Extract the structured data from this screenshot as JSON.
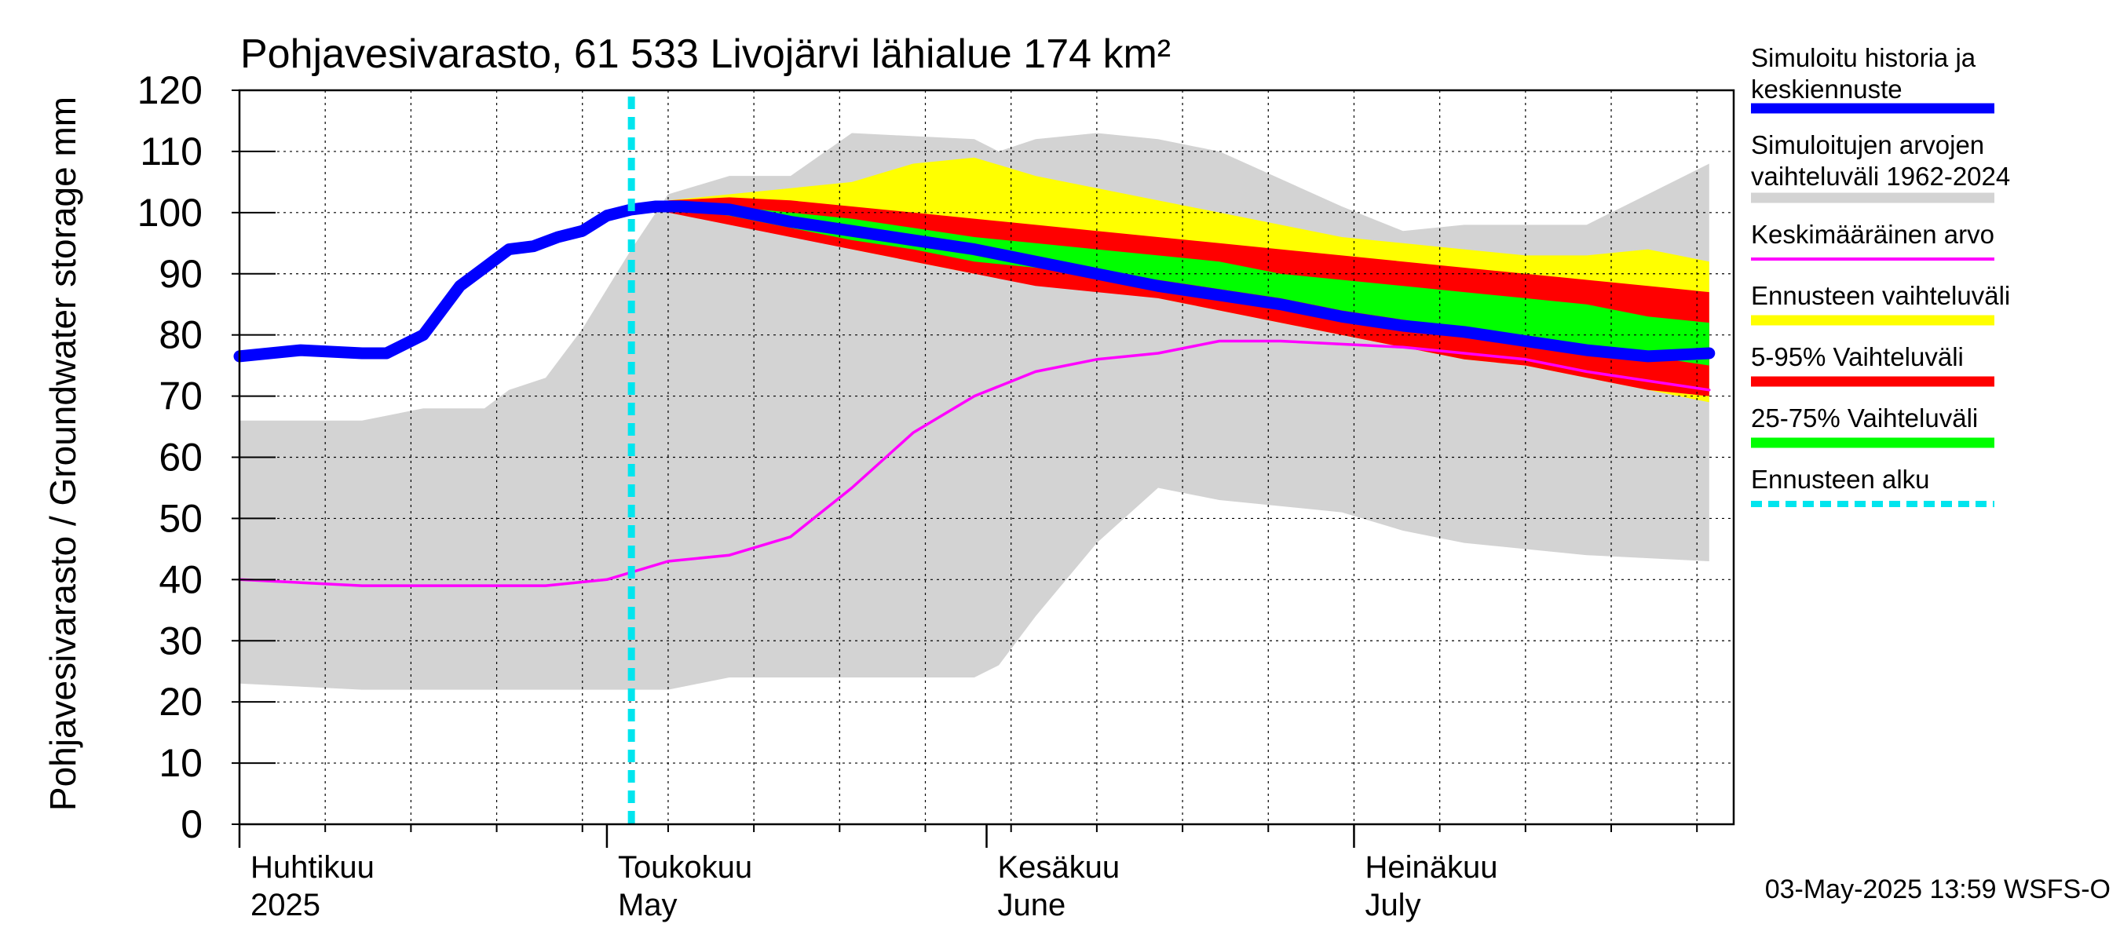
{
  "chart_data": {
    "type": "area",
    "title": "Pohjavesivarasto, 61 533 Livojärvi lähialue 174 km²",
    "ylabel": "Pohjavesivarasto / Groundwater storage   mm",
    "ylim": [
      0,
      120
    ],
    "yticks": [
      "0",
      "10",
      "20",
      "30",
      "40",
      "50",
      "60",
      "70",
      "80",
      "90",
      "100",
      "110",
      "120"
    ],
    "xlim": [
      "2025-04-01",
      "2025-07-31"
    ],
    "month_labels": [
      {
        "fi": "Huhtikuu",
        "en": "2025",
        "date": "2025-04-01"
      },
      {
        "fi": "Toukokuu",
        "en": "May",
        "date": "2025-05-01"
      },
      {
        "fi": "Kesäkuu",
        "en": "June",
        "date": "2025-06-01"
      },
      {
        "fi": "Heinäkuu",
        "en": "July",
        "date": "2025-07-01"
      }
    ],
    "forecast_start": "2025-05-03",
    "footer": "03-May-2025 13:59 WSFS-O",
    "legend": [
      {
        "label": "Simuloitu historia ja keskiennuste",
        "color": "#0000ff"
      },
      {
        "label": "Simuloitujen arvojen vaihteluväli 1962-2024",
        "color": "#d3d3d3"
      },
      {
        "label": "Keskimääräinen arvo",
        "color": "#ff00ff"
      },
      {
        "label": "Ennusteen vaihteluväli",
        "color": "#ffff00"
      },
      {
        "label": "5-95% Vaihteluväli",
        "color": "#ff0000"
      },
      {
        "label": "25-75% Vaihteluväli",
        "color": "#00ff00"
      },
      {
        "label": "Ennusteen alku",
        "color": "#00e5ee"
      }
    ],
    "hist_range": {
      "days": [
        0,
        10,
        15,
        20,
        22,
        25,
        28,
        32,
        35,
        40,
        45,
        50,
        60,
        62,
        65,
        70,
        75,
        80,
        90,
        95,
        100,
        110,
        120
      ],
      "upper": [
        66,
        66,
        68,
        68,
        71,
        73,
        81,
        94,
        103,
        106,
        106,
        113,
        112,
        110,
        112,
        113,
        112,
        110,
        101,
        97,
        98,
        98,
        108
      ],
      "lower": [
        23,
        22,
        22,
        22,
        22,
        22,
        22,
        22,
        22,
        24,
        24,
        24,
        24,
        26,
        34,
        46,
        55,
        53,
        51,
        48,
        46,
        44,
        43
      ]
    },
    "mean": {
      "days": [
        0,
        5,
        10,
        15,
        20,
        25,
        30,
        35,
        40,
        45,
        50,
        55,
        60,
        65,
        70,
        75,
        80,
        85,
        90,
        95,
        100,
        105,
        110,
        115,
        120
      ],
      "values": [
        40,
        39.5,
        39,
        39,
        39,
        39,
        40,
        43,
        44,
        47,
        55,
        64,
        70,
        74,
        76,
        77,
        79,
        79,
        78.5,
        78,
        77,
        76,
        74,
        72.5,
        71
      ]
    },
    "yellow_band": {
      "days": [
        33,
        35,
        40,
        45,
        50,
        55,
        60,
        65,
        70,
        75,
        80,
        85,
        90,
        95,
        100,
        105,
        110,
        115,
        120
      ],
      "upper": [
        101,
        102,
        103,
        104,
        105,
        108,
        109,
        106,
        104,
        102,
        100,
        98,
        96,
        95,
        94,
        93,
        93,
        94,
        92
      ],
      "lower": [
        101,
        100.5,
        99,
        97,
        94,
        92,
        90,
        89,
        88,
        86,
        84,
        82,
        80,
        78,
        76,
        75,
        73,
        71,
        69
      ]
    },
    "red_band": {
      "days": [
        33,
        35,
        40,
        45,
        50,
        55,
        60,
        65,
        70,
        75,
        80,
        85,
        90,
        95,
        100,
        105,
        110,
        115,
        120
      ],
      "upper": [
        101,
        102,
        102.5,
        102,
        101,
        100,
        99,
        98,
        97,
        96,
        95,
        94,
        93,
        92,
        91,
        90,
        89,
        88,
        87
      ],
      "lower": [
        101,
        100,
        98,
        96,
        94,
        92,
        90,
        88,
        87,
        86,
        84,
        82,
        80,
        78,
        76,
        75,
        73,
        71,
        70
      ]
    },
    "green_band": {
      "days": [
        33,
        35,
        40,
        45,
        50,
        55,
        60,
        65,
        70,
        75,
        80,
        85,
        90,
        95,
        100,
        105,
        110,
        115,
        120
      ],
      "upper": [
        101,
        101.3,
        101,
        100,
        99,
        97.5,
        96,
        95,
        94,
        93,
        92,
        90,
        89,
        88,
        87,
        86,
        85,
        83,
        82
      ]
    },
    "green_lower_values": [
      101,
      100.7,
      99.5,
      97.5,
      95.5,
      94,
      92,
      91,
      90,
      89,
      87.5,
      86,
      84,
      82.5,
      81,
      79.5,
      78,
      76.5,
      75
    ],
    "simulated": {
      "days": [
        0,
        5,
        10,
        12,
        15,
        18,
        20,
        22,
        24,
        26,
        28,
        30,
        32,
        34,
        36,
        40,
        45,
        50,
        55,
        60,
        65,
        70,
        75,
        80,
        85,
        90,
        95,
        100,
        105,
        110,
        115,
        120
      ],
      "values": [
        76.5,
        77.5,
        77,
        77,
        80,
        88,
        91,
        94,
        94.5,
        96,
        97,
        99.5,
        100.5,
        101,
        101,
        100.5,
        98.5,
        97,
        95.5,
        94,
        92,
        90,
        88,
        86.5,
        85,
        83,
        81.5,
        80.5,
        79,
        77.5,
        76.5,
        77
      ]
    }
  }
}
